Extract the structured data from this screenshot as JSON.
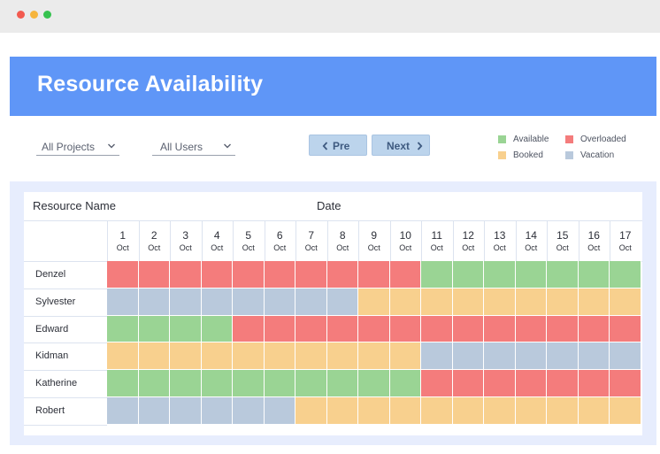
{
  "window": {
    "controls": [
      "close",
      "minimize",
      "maximize"
    ]
  },
  "header": {
    "title": "Resource Availability"
  },
  "filters": {
    "projects": {
      "label": "All Projects",
      "icon": "chevron-down-icon"
    },
    "users": {
      "label": "All Users",
      "icon": "chevron-down-icon"
    }
  },
  "nav": {
    "prev_label": "Pre",
    "next_label": "Next"
  },
  "legend": {
    "available": {
      "label": "Available",
      "color": "#9ad494"
    },
    "overloaded": {
      "label": "Overloaded",
      "color": "#f47c7c"
    },
    "booked": {
      "label": "Booked",
      "color": "#f8d08e"
    },
    "vacation": {
      "label": "Vacation",
      "color": "#b9c9dc"
    }
  },
  "table": {
    "resource_header": "Resource Name",
    "date_header": "Date",
    "month": "Oct",
    "days": [
      "1",
      "2",
      "3",
      "4",
      "5",
      "6",
      "7",
      "8",
      "9",
      "10",
      "11",
      "12",
      "13",
      "14",
      "15",
      "16",
      "17"
    ],
    "rows": [
      {
        "name": "Denzel",
        "cells": [
          "O",
          "O",
          "O",
          "O",
          "O",
          "O",
          "O",
          "O",
          "O",
          "O",
          "A",
          "A",
          "A",
          "A",
          "A",
          "A",
          "A"
        ]
      },
      {
        "name": "Sylvester",
        "cells": [
          "V",
          "V",
          "V",
          "V",
          "V",
          "V",
          "V",
          "V",
          "B",
          "B",
          "B",
          "B",
          "B",
          "B",
          "B",
          "B",
          "B"
        ]
      },
      {
        "name": "Edward",
        "cells": [
          "A",
          "A",
          "A",
          "A",
          "O",
          "O",
          "O",
          "O",
          "O",
          "O",
          "O",
          "O",
          "O",
          "O",
          "O",
          "O",
          "O"
        ]
      },
      {
        "name": "Kidman",
        "cells": [
          "B",
          "B",
          "B",
          "B",
          "B",
          "B",
          "B",
          "B",
          "B",
          "B",
          "V",
          "V",
          "V",
          "V",
          "V",
          "V",
          "V"
        ]
      },
      {
        "name": "Katherine",
        "cells": [
          "A",
          "A",
          "A",
          "A",
          "A",
          "A",
          "A",
          "A",
          "A",
          "A",
          "O",
          "O",
          "O",
          "O",
          "O",
          "O",
          "O"
        ]
      },
      {
        "name": "Robert",
        "cells": [
          "V",
          "V",
          "V",
          "V",
          "V",
          "V",
          "B",
          "B",
          "B",
          "B",
          "B",
          "B",
          "B",
          "B",
          "B",
          "B",
          "B"
        ]
      }
    ],
    "status_colors": {
      "A": "#9ad494",
      "O": "#f47c7c",
      "B": "#f8d08e",
      "V": "#b9c9dc"
    }
  }
}
